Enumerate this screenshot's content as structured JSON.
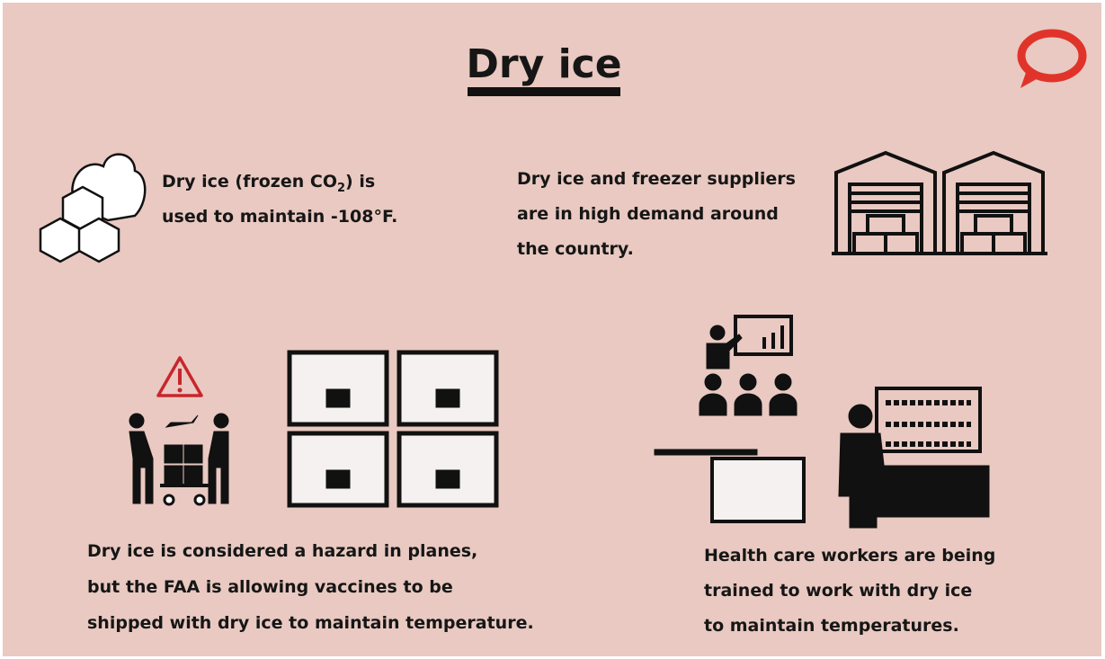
{
  "header": {
    "title": "Dry ice"
  },
  "sections": [
    {
      "first_line": {
        "before": "Dry ice (frozen CO",
        "subscript": "2",
        "after": ") is"
      },
      "lines": [
        "used to maintain -108°F."
      ]
    },
    {
      "lines": [
        "Dry ice and freezer suppliers",
        "are in high demand around",
        "the country."
      ]
    },
    {
      "lines": [
        "Dry ice is considered a hazard in planes,",
        "but the FAA is allowing vaccines to be",
        "shipped with dry ice to maintain temperature."
      ]
    },
    {
      "lines": [
        "Health care workers are being",
        "trained to work with dry ice",
        "to maintain temperatures."
      ]
    }
  ]
}
